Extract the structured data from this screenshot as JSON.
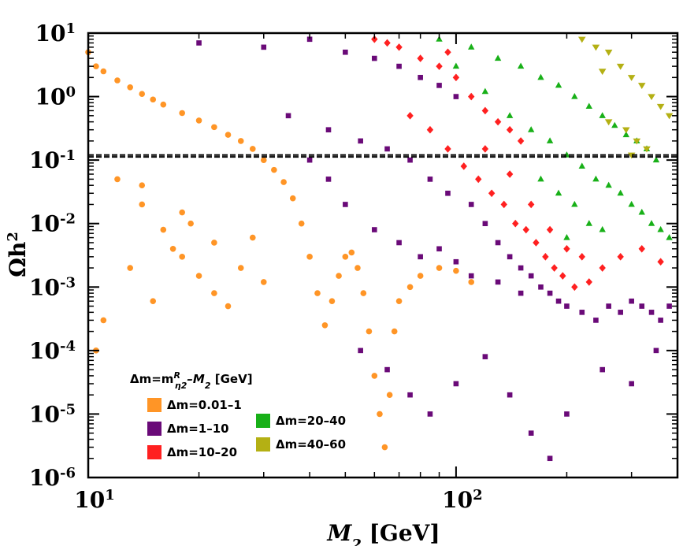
{
  "chart_data": {
    "type": "scatter",
    "title": "",
    "xlabel": "M2 [GeV]",
    "ylabel": "Ωh2",
    "xscale": "log",
    "yscale": "log",
    "xlim": [
      10,
      400
    ],
    "ylim": [
      1e-06,
      10
    ],
    "x_ticks": [
      {
        "base": "10",
        "exp": "1",
        "value": 10
      },
      {
        "base": "10",
        "exp": "2",
        "value": 100
      }
    ],
    "y_ticks": [
      {
        "base": "10",
        "exp": "1",
        "value": 10
      },
      {
        "base": "10",
        "exp": "0",
        "value": 1
      },
      {
        "base": "10",
        "exp": "-1",
        "value": 0.1
      },
      {
        "base": "10",
        "exp": "-2",
        "value": 0.01
      },
      {
        "base": "10",
        "exp": "-3",
        "value": 0.001
      },
      {
        "base": "10",
        "exp": "-4",
        "value": 0.0001
      },
      {
        "base": "10",
        "exp": "-5",
        "value": 1e-05
      },
      {
        "base": "10",
        "exp": "-6",
        "value": 1e-06
      }
    ],
    "reference_lines": [
      0.112,
      0.12
    ],
    "legend": {
      "title_prefix": "Δm=m",
      "title_sup": "R",
      "title_sub": "η2",
      "title_suffix": "–M2 [GeV]",
      "placement": "bottom-left"
    },
    "series": [
      {
        "name": "Δm=0.01–1",
        "color": "#ff9526",
        "marker": "circle",
        "points": [
          [
            10,
            5
          ],
          [
            10.5,
            3
          ],
          [
            11,
            2.5
          ],
          [
            12,
            1.8
          ],
          [
            13,
            1.4
          ],
          [
            14,
            1.1
          ],
          [
            15,
            0.9
          ],
          [
            16,
            0.75
          ],
          [
            18,
            0.55
          ],
          [
            20,
            0.42
          ],
          [
            22,
            0.33
          ],
          [
            24,
            0.25
          ],
          [
            26,
            0.2
          ],
          [
            28,
            0.15
          ],
          [
            30,
            0.1
          ],
          [
            32,
            0.07
          ],
          [
            34,
            0.045
          ],
          [
            36,
            0.025
          ],
          [
            38,
            0.01
          ],
          [
            40,
            0.003
          ],
          [
            42,
            0.0008
          ],
          [
            44,
            0.00025
          ],
          [
            46,
            0.0006
          ],
          [
            48,
            0.0015
          ],
          [
            50,
            0.003
          ],
          [
            52,
            0.0035
          ],
          [
            54,
            0.002
          ],
          [
            56,
            0.0008
          ],
          [
            58,
            0.0002
          ],
          [
            60,
            4e-05
          ],
          [
            62,
            1e-05
          ],
          [
            64,
            3e-06
          ],
          [
            66,
            2e-05
          ],
          [
            68,
            0.0002
          ],
          [
            70,
            0.0006
          ],
          [
            75,
            0.001
          ],
          [
            80,
            0.0015
          ],
          [
            90,
            0.002
          ],
          [
            100,
            0.0018
          ],
          [
            110,
            0.0012
          ],
          [
            12,
            0.05
          ],
          [
            14,
            0.02
          ],
          [
            16,
            0.008
          ],
          [
            18,
            0.003
          ],
          [
            20,
            0.0015
          ],
          [
            22,
            0.0008
          ],
          [
            11,
            0.0003
          ],
          [
            13,
            0.002
          ],
          [
            15,
            0.0006
          ],
          [
            17,
            0.004
          ],
          [
            19,
            0.01
          ],
          [
            24,
            0.0005
          ],
          [
            26,
            0.002
          ],
          [
            28,
            0.006
          ],
          [
            30,
            0.0012
          ],
          [
            14,
            0.04
          ],
          [
            18,
            0.015
          ],
          [
            22,
            0.005
          ],
          [
            10.5,
            0.0001
          ]
        ]
      },
      {
        "name": "Δm=1–10",
        "color": "#6a0a78",
        "marker": "square",
        "points": [
          [
            20,
            7
          ],
          [
            30,
            6
          ],
          [
            40,
            8
          ],
          [
            50,
            5
          ],
          [
            60,
            4
          ],
          [
            70,
            3
          ],
          [
            80,
            2
          ],
          [
            90,
            1.5
          ],
          [
            100,
            1
          ],
          [
            35,
            0.5
          ],
          [
            45,
            0.3
          ],
          [
            55,
            0.2
          ],
          [
            65,
            0.15
          ],
          [
            75,
            0.1
          ],
          [
            85,
            0.05
          ],
          [
            95,
            0.03
          ],
          [
            110,
            0.02
          ],
          [
            120,
            0.01
          ],
          [
            130,
            0.005
          ],
          [
            140,
            0.003
          ],
          [
            150,
            0.002
          ],
          [
            160,
            0.0015
          ],
          [
            170,
            0.001
          ],
          [
            180,
            0.0008
          ],
          [
            190,
            0.0006
          ],
          [
            200,
            0.0005
          ],
          [
            220,
            0.0004
          ],
          [
            240,
            0.0003
          ],
          [
            260,
            0.0005
          ],
          [
            280,
            0.0004
          ],
          [
            300,
            0.0006
          ],
          [
            320,
            0.0005
          ],
          [
            340,
            0.0004
          ],
          [
            360,
            0.0003
          ],
          [
            380,
            0.0005
          ],
          [
            60,
            0.008
          ],
          [
            70,
            0.005
          ],
          [
            80,
            0.003
          ],
          [
            90,
            0.004
          ],
          [
            100,
            0.0025
          ],
          [
            55,
            0.0001
          ],
          [
            65,
            5e-05
          ],
          [
            75,
            2e-05
          ],
          [
            85,
            1e-05
          ],
          [
            100,
            3e-05
          ],
          [
            120,
            8e-05
          ],
          [
            140,
            2e-05
          ],
          [
            160,
            5e-06
          ],
          [
            180,
            2e-06
          ],
          [
            200,
            1e-05
          ],
          [
            250,
            5e-05
          ],
          [
            300,
            3e-05
          ],
          [
            350,
            0.0001
          ],
          [
            45,
            0.05
          ],
          [
            50,
            0.02
          ],
          [
            40,
            0.1
          ],
          [
            110,
            0.0015
          ],
          [
            130,
            0.0012
          ],
          [
            150,
            0.0008
          ]
        ]
      },
      {
        "name": "Δm=10–20",
        "color": "#ff2020",
        "marker": "diamond",
        "points": [
          [
            60,
            8
          ],
          [
            70,
            6
          ],
          [
            80,
            4
          ],
          [
            90,
            3
          ],
          [
            100,
            2
          ],
          [
            110,
            1
          ],
          [
            120,
            0.6
          ],
          [
            130,
            0.4
          ],
          [
            140,
            0.3
          ],
          [
            150,
            0.2
          ],
          [
            75,
            0.5
          ],
          [
            85,
            0.3
          ],
          [
            95,
            0.15
          ],
          [
            105,
            0.08
          ],
          [
            115,
            0.05
          ],
          [
            125,
            0.03
          ],
          [
            135,
            0.02
          ],
          [
            145,
            0.01
          ],
          [
            155,
            0.008
          ],
          [
            165,
            0.005
          ],
          [
            175,
            0.003
          ],
          [
            185,
            0.002
          ],
          [
            195,
            0.0015
          ],
          [
            210,
            0.001
          ],
          [
            230,
            0.0012
          ],
          [
            250,
            0.002
          ],
          [
            280,
            0.003
          ],
          [
            320,
            0.004
          ],
          [
            360,
            0.0025
          ],
          [
            65,
            7
          ],
          [
            95,
            5
          ],
          [
            120,
            0.15
          ],
          [
            140,
            0.06
          ],
          [
            160,
            0.02
          ],
          [
            180,
            0.008
          ],
          [
            200,
            0.004
          ],
          [
            220,
            0.003
          ]
        ]
      },
      {
        "name": "Δm=20–40",
        "color": "#18b018",
        "marker": "triangle-up",
        "points": [
          [
            90,
            8
          ],
          [
            110,
            6
          ],
          [
            130,
            4
          ],
          [
            150,
            3
          ],
          [
            170,
            2
          ],
          [
            190,
            1.5
          ],
          [
            210,
            1
          ],
          [
            230,
            0.7
          ],
          [
            250,
            0.5
          ],
          [
            270,
            0.35
          ],
          [
            290,
            0.25
          ],
          [
            310,
            0.2
          ],
          [
            330,
            0.15
          ],
          [
            350,
            0.1
          ],
          [
            140,
            0.5
          ],
          [
            160,
            0.3
          ],
          [
            180,
            0.2
          ],
          [
            200,
            0.12
          ],
          [
            220,
            0.08
          ],
          [
            240,
            0.05
          ],
          [
            260,
            0.04
          ],
          [
            280,
            0.03
          ],
          [
            300,
            0.02
          ],
          [
            320,
            0.015
          ],
          [
            340,
            0.01
          ],
          [
            360,
            0.008
          ],
          [
            380,
            0.006
          ],
          [
            170,
            0.05
          ],
          [
            190,
            0.03
          ],
          [
            210,
            0.02
          ],
          [
            230,
            0.01
          ],
          [
            250,
            0.008
          ],
          [
            200,
            0.006
          ],
          [
            120,
            1.2
          ],
          [
            100,
            3
          ]
        ]
      },
      {
        "name": "Δm=40–60",
        "color": "#b4b014",
        "marker": "triangle-down",
        "points": [
          [
            220,
            8
          ],
          [
            240,
            6
          ],
          [
            260,
            5
          ],
          [
            280,
            3
          ],
          [
            300,
            2
          ],
          [
            320,
            1.5
          ],
          [
            340,
            1
          ],
          [
            360,
            0.7
          ],
          [
            380,
            0.5
          ],
          [
            260,
            0.4
          ],
          [
            290,
            0.3
          ],
          [
            310,
            0.2
          ],
          [
            330,
            0.15
          ],
          [
            300,
            0.12
          ],
          [
            250,
            2.5
          ]
        ]
      }
    ]
  }
}
